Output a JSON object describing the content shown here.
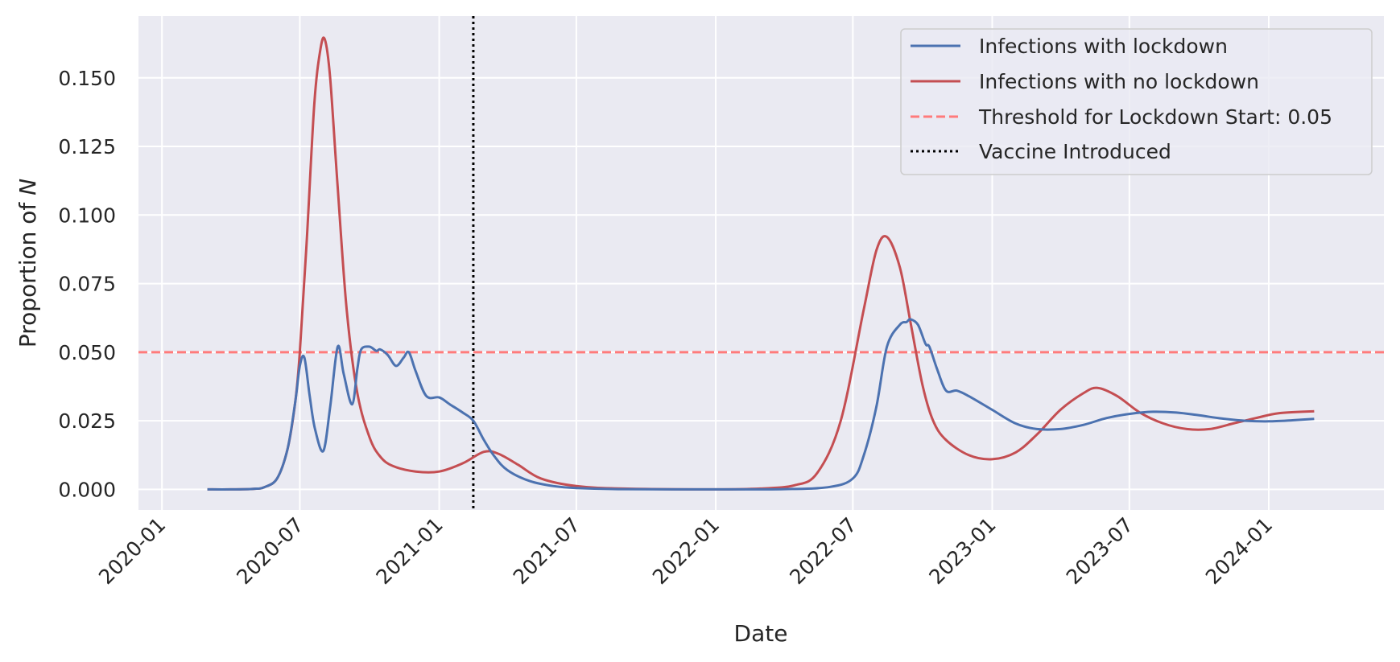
{
  "chart_data": {
    "type": "line",
    "xlabel": "Date",
    "ylabel_prefix": "Proportion of ",
    "ylabel_var": "N",
    "x_ticks": [
      "2020-01",
      "2020-07",
      "2021-01",
      "2021-07",
      "2022-01",
      "2022-07",
      "2023-01",
      "2023-07",
      "2024-01"
    ],
    "y_ticks": [
      "0.000",
      "0.025",
      "0.050",
      "0.075",
      "0.100",
      "0.125",
      "0.150"
    ],
    "xlim": [
      "2019-12-01",
      "2024-06-01"
    ],
    "ylim": [
      -0.0075,
      0.1725
    ],
    "grid": true,
    "legend_position": "top-right",
    "series": [
      {
        "name": "Infections with lockdown",
        "color": "#4C72B0",
        "points": [
          [
            "2020-03-01",
            0.0
          ],
          [
            "2020-04-01",
            0.0
          ],
          [
            "2020-05-01",
            0.0002
          ],
          [
            "2020-05-15",
            0.0008
          ],
          [
            "2020-06-01",
            0.004
          ],
          [
            "2020-06-15",
            0.015
          ],
          [
            "2020-06-25",
            0.032
          ],
          [
            "2020-07-01",
            0.045
          ],
          [
            "2020-07-07",
            0.048
          ],
          [
            "2020-07-14",
            0.034
          ],
          [
            "2020-07-21",
            0.022
          ],
          [
            "2020-08-01",
            0.014
          ],
          [
            "2020-08-10",
            0.03
          ],
          [
            "2020-08-20",
            0.052
          ],
          [
            "2020-08-28",
            0.042
          ],
          [
            "2020-09-08",
            0.031
          ],
          [
            "2020-09-15",
            0.044
          ],
          [
            "2020-09-20",
            0.051
          ],
          [
            "2020-10-01",
            0.052
          ],
          [
            "2020-10-10",
            0.0505
          ],
          [
            "2020-10-15",
            0.051
          ],
          [
            "2020-10-25",
            0.049
          ],
          [
            "2020-11-05",
            0.045
          ],
          [
            "2020-11-15",
            0.048
          ],
          [
            "2020-11-22",
            0.05
          ],
          [
            "2020-12-01",
            0.043
          ],
          [
            "2020-12-15",
            0.034
          ],
          [
            "2021-01-01",
            0.0335
          ],
          [
            "2021-01-15",
            0.031
          ],
          [
            "2021-02-01",
            0.028
          ],
          [
            "2021-02-15",
            0.025
          ],
          [
            "2021-03-01",
            0.018
          ],
          [
            "2021-03-15",
            0.012
          ],
          [
            "2021-04-01",
            0.007
          ],
          [
            "2021-05-01",
            0.003
          ],
          [
            "2021-06-01",
            0.0012
          ],
          [
            "2021-07-01",
            0.0005
          ],
          [
            "2021-09-01",
            0.0001
          ],
          [
            "2022-01-01",
            0.0
          ],
          [
            "2022-04-01",
            0.0001
          ],
          [
            "2022-06-01",
            0.0009
          ],
          [
            "2022-07-01",
            0.004
          ],
          [
            "2022-07-15",
            0.012
          ],
          [
            "2022-08-01",
            0.03
          ],
          [
            "2022-08-15",
            0.052
          ],
          [
            "2022-09-01",
            0.06
          ],
          [
            "2022-09-10",
            0.061
          ],
          [
            "2022-09-15",
            0.062
          ],
          [
            "2022-09-25",
            0.06
          ],
          [
            "2022-10-05",
            0.053
          ],
          [
            "2022-10-10",
            0.052
          ],
          [
            "2022-10-20",
            0.044
          ],
          [
            "2022-11-01",
            0.036
          ],
          [
            "2022-11-15",
            0.036
          ],
          [
            "2022-12-01",
            0.034
          ],
          [
            "2023-01-01",
            0.029
          ],
          [
            "2023-02-01",
            0.024
          ],
          [
            "2023-03-01",
            0.022
          ],
          [
            "2023-04-01",
            0.022
          ],
          [
            "2023-05-01",
            0.0235
          ],
          [
            "2023-06-01",
            0.026
          ],
          [
            "2023-07-01",
            0.0275
          ],
          [
            "2023-08-01",
            0.0283
          ],
          [
            "2023-09-01",
            0.028
          ],
          [
            "2023-10-01",
            0.027
          ],
          [
            "2023-11-01",
            0.0258
          ],
          [
            "2023-12-01",
            0.025
          ],
          [
            "2024-01-01",
            0.0248
          ],
          [
            "2024-02-01",
            0.0252
          ],
          [
            "2024-03-01",
            0.0257
          ]
        ]
      },
      {
        "name": "Infections with no lockdown",
        "color": "#C44E52",
        "points": [
          [
            "2020-03-01",
            0.0
          ],
          [
            "2020-04-01",
            0.0
          ],
          [
            "2020-05-01",
            0.0002
          ],
          [
            "2020-05-15",
            0.0008
          ],
          [
            "2020-06-01",
            0.004
          ],
          [
            "2020-06-15",
            0.015
          ],
          [
            "2020-06-25",
            0.032
          ],
          [
            "2020-07-01",
            0.05
          ],
          [
            "2020-07-10",
            0.09
          ],
          [
            "2020-07-20",
            0.14
          ],
          [
            "2020-07-28",
            0.16
          ],
          [
            "2020-08-03",
            0.164
          ],
          [
            "2020-08-10",
            0.15
          ],
          [
            "2020-08-20",
            0.11
          ],
          [
            "2020-09-01",
            0.065
          ],
          [
            "2020-09-15",
            0.035
          ],
          [
            "2020-10-01",
            0.019
          ],
          [
            "2020-10-15",
            0.012
          ],
          [
            "2020-11-01",
            0.0085
          ],
          [
            "2020-12-01",
            0.0065
          ],
          [
            "2021-01-01",
            0.0065
          ],
          [
            "2021-02-01",
            0.0095
          ],
          [
            "2021-03-01",
            0.0137
          ],
          [
            "2021-03-20",
            0.013
          ],
          [
            "2021-04-15",
            0.009
          ],
          [
            "2021-05-15",
            0.004
          ],
          [
            "2021-07-01",
            0.0012
          ],
          [
            "2021-09-01",
            0.0003
          ],
          [
            "2022-01-01",
            0.0
          ],
          [
            "2022-03-01",
            0.0003
          ],
          [
            "2022-04-15",
            0.0015
          ],
          [
            "2022-05-15",
            0.006
          ],
          [
            "2022-06-15",
            0.025
          ],
          [
            "2022-07-15",
            0.065
          ],
          [
            "2022-08-01",
            0.087
          ],
          [
            "2022-08-15",
            0.092
          ],
          [
            "2022-09-01",
            0.081
          ],
          [
            "2022-09-15",
            0.061
          ],
          [
            "2022-10-01",
            0.038
          ],
          [
            "2022-10-15",
            0.025
          ],
          [
            "2022-11-01",
            0.018
          ],
          [
            "2022-12-01",
            0.0125
          ],
          [
            "2023-01-01",
            0.011
          ],
          [
            "2023-02-01",
            0.0135
          ],
          [
            "2023-03-01",
            0.02
          ],
          [
            "2023-04-01",
            0.029
          ],
          [
            "2023-05-01",
            0.035
          ],
          [
            "2023-05-20",
            0.037
          ],
          [
            "2023-06-15",
            0.034
          ],
          [
            "2023-07-15",
            0.028
          ],
          [
            "2023-08-15",
            0.024
          ],
          [
            "2023-09-15",
            0.022
          ],
          [
            "2023-10-15",
            0.022
          ],
          [
            "2023-11-15",
            0.024
          ],
          [
            "2023-12-15",
            0.026
          ],
          [
            "2024-01-15",
            0.0278
          ],
          [
            "2024-03-01",
            0.0285
          ]
        ]
      }
    ],
    "threshold": {
      "label": "Threshold for Lockdown Start: 0.05",
      "value": 0.05,
      "color": "#FF7B7B"
    },
    "vaccine": {
      "label": "Vaccine Introduced",
      "date": "2021-02-15",
      "color": "#000000"
    }
  }
}
